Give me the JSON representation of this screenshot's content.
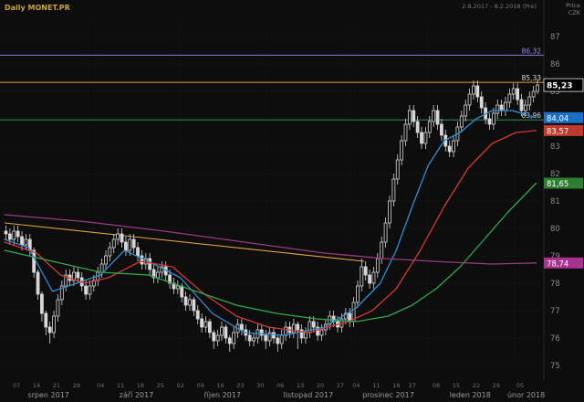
{
  "header": {
    "title": "Daily MONET.PR",
    "range": "2.8.2017 - 8.2.2018 (Pre)",
    "axis_title_line1": "Price",
    "axis_title_line2": "CZK"
  },
  "chart_data": {
    "type": "candlestick",
    "title": "Daily MONET.PR",
    "ylabel": "Price CZK",
    "ylim": [
      74.8,
      87.6
    ],
    "y_ticks": [
      87,
      86,
      85,
      84,
      83,
      82,
      81,
      80,
      79,
      78,
      77,
      76,
      75
    ],
    "grid": true,
    "candles": [
      [
        79.9,
        80.1,
        79.6,
        79.8
      ],
      [
        79.8,
        80.0,
        79.4,
        79.6
      ],
      [
        79.6,
        80.1,
        79.4,
        79.9
      ],
      [
        79.9,
        80.1,
        79.5,
        79.7
      ],
      [
        79.7,
        79.9,
        79.2,
        79.4
      ],
      [
        79.4,
        79.8,
        79.2,
        79.6
      ],
      [
        79.6,
        79.8,
        79.0,
        79.2
      ],
      [
        79.2,
        79.3,
        78.2,
        78.4
      ],
      [
        78.4,
        78.5,
        77.4,
        77.6
      ],
      [
        77.6,
        77.7,
        76.6,
        76.9
      ],
      [
        76.9,
        77.0,
        76.1,
        76.4
      ],
      [
        76.4,
        76.6,
        75.8,
        76.2
      ],
      [
        76.2,
        77.0,
        76.0,
        76.8
      ],
      [
        76.8,
        77.6,
        76.6,
        77.4
      ],
      [
        77.4,
        78.1,
        77.2,
        77.9
      ],
      [
        77.9,
        78.5,
        77.7,
        78.3
      ],
      [
        78.3,
        78.5,
        77.9,
        78.1
      ],
      [
        78.1,
        78.6,
        77.9,
        78.4
      ],
      [
        78.4,
        78.6,
        78.0,
        78.2
      ],
      [
        78.2,
        78.4,
        77.7,
        77.9
      ],
      [
        77.9,
        78.1,
        77.4,
        77.6
      ],
      [
        77.6,
        78.1,
        77.4,
        77.9
      ],
      [
        77.9,
        78.3,
        77.7,
        78.1
      ],
      [
        78.1,
        78.6,
        77.9,
        78.4
      ],
      [
        78.4,
        78.9,
        78.2,
        78.7
      ],
      [
        78.7,
        79.2,
        78.5,
        79.0
      ],
      [
        79.0,
        79.5,
        78.8,
        79.3
      ],
      [
        79.3,
        79.8,
        79.1,
        79.6
      ],
      [
        79.6,
        80.0,
        79.4,
        79.8
      ],
      [
        79.8,
        80.0,
        79.3,
        79.5
      ],
      [
        79.5,
        79.7,
        79.0,
        79.2
      ],
      [
        79.2,
        79.8,
        79.0,
        79.6
      ],
      [
        79.6,
        79.8,
        79.1,
        79.3
      ],
      [
        79.3,
        79.5,
        78.8,
        79.0
      ],
      [
        79.0,
        79.2,
        78.5,
        78.7
      ],
      [
        78.7,
        79.1,
        78.5,
        78.9
      ],
      [
        78.9,
        79.1,
        78.3,
        78.5
      ],
      [
        78.5,
        78.7,
        78.0,
        78.2
      ],
      [
        78.2,
        78.6,
        78.0,
        78.4
      ],
      [
        78.4,
        78.8,
        78.2,
        78.6
      ],
      [
        78.6,
        78.8,
        78.1,
        78.3
      ],
      [
        78.3,
        78.5,
        77.8,
        78.0
      ],
      [
        78.0,
        78.2,
        77.6,
        77.8
      ],
      [
        77.8,
        78.1,
        77.6,
        77.9
      ],
      [
        77.9,
        78.0,
        77.3,
        77.5
      ],
      [
        77.5,
        77.7,
        77.0,
        77.2
      ],
      [
        77.2,
        77.6,
        77.0,
        77.4
      ],
      [
        77.4,
        77.5,
        76.8,
        77.0
      ],
      [
        77.0,
        77.2,
        76.5,
        76.7
      ],
      [
        76.7,
        76.9,
        76.2,
        76.4
      ],
      [
        76.4,
        76.8,
        76.2,
        76.6
      ],
      [
        76.6,
        76.7,
        76.0,
        76.2
      ],
      [
        76.2,
        76.3,
        75.6,
        75.9
      ],
      [
        75.9,
        76.3,
        75.7,
        76.1
      ],
      [
        76.1,
        76.6,
        75.9,
        76.4
      ],
      [
        76.4,
        76.5,
        75.8,
        76.0
      ],
      [
        76.0,
        76.1,
        75.5,
        75.8
      ],
      [
        75.8,
        76.4,
        75.6,
        76.2
      ],
      [
        76.2,
        76.7,
        76.0,
        76.5
      ],
      [
        76.5,
        76.7,
        76.1,
        76.3
      ],
      [
        76.3,
        76.5,
        75.9,
        76.1
      ],
      [
        76.1,
        76.3,
        75.7,
        75.9
      ],
      [
        75.9,
        76.2,
        75.7,
        76.0
      ],
      [
        76.0,
        76.5,
        75.8,
        76.3
      ],
      [
        76.3,
        76.5,
        75.9,
        76.1
      ],
      [
        76.1,
        76.3,
        75.6,
        75.9
      ],
      [
        75.9,
        76.4,
        75.7,
        76.2
      ],
      [
        76.2,
        76.4,
        75.8,
        76.0
      ],
      [
        76.0,
        76.1,
        75.5,
        75.8
      ],
      [
        75.8,
        76.3,
        75.6,
        76.1
      ],
      [
        76.1,
        76.6,
        75.9,
        76.4
      ],
      [
        76.4,
        76.6,
        76.0,
        76.2
      ],
      [
        76.2,
        76.7,
        76.0,
        76.5
      ],
      [
        76.5,
        76.6,
        75.6,
        76.3
      ],
      [
        76.3,
        76.5,
        75.8,
        76.0
      ],
      [
        76.0,
        76.4,
        75.8,
        76.2
      ],
      [
        76.2,
        76.8,
        76.0,
        76.6
      ],
      [
        76.6,
        76.8,
        76.2,
        76.4
      ],
      [
        76.4,
        76.6,
        75.9,
        76.1
      ],
      [
        76.1,
        76.5,
        75.9,
        76.3
      ],
      [
        76.3,
        76.7,
        76.1,
        76.5
      ],
      [
        76.5,
        77.0,
        76.3,
        76.8
      ],
      [
        76.8,
        77.0,
        76.4,
        76.6
      ],
      [
        76.6,
        76.8,
        76.2,
        76.4
      ],
      [
        76.4,
        76.9,
        76.2,
        76.7
      ],
      [
        76.7,
        77.1,
        76.5,
        76.9
      ],
      [
        76.9,
        77.1,
        76.4,
        76.6
      ],
      [
        76.6,
        77.5,
        76.4,
        77.3
      ],
      [
        77.3,
        78.1,
        77.1,
        77.9
      ],
      [
        77.9,
        78.9,
        77.7,
        78.6
      ],
      [
        78.6,
        78.8,
        78.1,
        78.3
      ],
      [
        78.3,
        78.5,
        77.8,
        78.0
      ],
      [
        78.0,
        78.6,
        77.8,
        78.4
      ],
      [
        78.4,
        79.1,
        78.2,
        78.9
      ],
      [
        78.9,
        79.7,
        78.7,
        79.5
      ],
      [
        79.5,
        80.4,
        79.3,
        80.2
      ],
      [
        80.2,
        81.2,
        80.0,
        81.0
      ],
      [
        81.0,
        82.0,
        80.8,
        81.8
      ],
      [
        81.8,
        82.7,
        81.6,
        82.5
      ],
      [
        82.5,
        83.4,
        82.3,
        83.2
      ],
      [
        83.2,
        84.0,
        83.0,
        83.8
      ],
      [
        83.8,
        84.5,
        83.6,
        84.3
      ],
      [
        84.3,
        84.5,
        83.7,
        83.9
      ],
      [
        83.9,
        84.1,
        83.3,
        83.5
      ],
      [
        83.5,
        83.7,
        82.9,
        83.1
      ],
      [
        83.1,
        83.7,
        82.9,
        83.5
      ],
      [
        83.5,
        84.1,
        83.3,
        83.9
      ],
      [
        83.9,
        84.5,
        83.7,
        84.3
      ],
      [
        84.3,
        84.5,
        83.6,
        83.8
      ],
      [
        83.8,
        84.0,
        83.2,
        83.4
      ],
      [
        83.4,
        83.6,
        82.8,
        83.0
      ],
      [
        83.0,
        83.2,
        82.6,
        82.8
      ],
      [
        82.8,
        83.4,
        82.6,
        83.2
      ],
      [
        83.2,
        83.9,
        83.0,
        83.7
      ],
      [
        83.7,
        84.3,
        83.5,
        84.1
      ],
      [
        84.1,
        84.7,
        83.9,
        84.5
      ],
      [
        84.5,
        85.1,
        84.3,
        84.9
      ],
      [
        84.9,
        85.4,
        84.7,
        85.2
      ],
      [
        85.2,
        85.4,
        84.6,
        84.8
      ],
      [
        84.8,
        85.0,
        84.2,
        84.4
      ],
      [
        84.4,
        84.6,
        83.8,
        84.0
      ],
      [
        84.0,
        84.2,
        83.6,
        83.8
      ],
      [
        83.8,
        84.4,
        83.6,
        84.2
      ],
      [
        84.2,
        84.7,
        84.0,
        84.5
      ],
      [
        84.5,
        84.7,
        84.1,
        84.3
      ],
      [
        84.3,
        84.8,
        84.1,
        84.6
      ],
      [
        84.6,
        85.1,
        84.4,
        84.9
      ],
      [
        84.9,
        85.3,
        84.7,
        85.1
      ],
      [
        85.1,
        85.3,
        84.5,
        84.7
      ],
      [
        84.7,
        84.9,
        84.1,
        84.3
      ],
      [
        84.3,
        84.7,
        84.1,
        84.5
      ],
      [
        84.5,
        85.0,
        84.3,
        84.8
      ],
      [
        84.8,
        85.2,
        84.6,
        85.0
      ],
      [
        85.0,
        85.45,
        84.9,
        85.23
      ]
    ],
    "moving_averages": [
      {
        "name": "ma-fast-blue",
        "color": "#2f8fd8",
        "last_label": "84,04",
        "points": [
          [
            0,
            79.6
          ],
          [
            6,
            79.3
          ],
          [
            12,
            77.7
          ],
          [
            18,
            78.0
          ],
          [
            24,
            78.3
          ],
          [
            30,
            79.2
          ],
          [
            36,
            78.8
          ],
          [
            44,
            78.2
          ],
          [
            52,
            76.9
          ],
          [
            60,
            76.2
          ],
          [
            70,
            76.1
          ],
          [
            80,
            76.4
          ],
          [
            88,
            77.1
          ],
          [
            94,
            78.0
          ],
          [
            98,
            79.2
          ],
          [
            102,
            80.8
          ],
          [
            106,
            82.3
          ],
          [
            110,
            83.2
          ],
          [
            114,
            83.5
          ],
          [
            118,
            84.0
          ],
          [
            122,
            84.3
          ],
          [
            127,
            84.3
          ],
          [
            133,
            84.04
          ]
        ]
      },
      {
        "name": "ma-mid-red",
        "color": "#d33a32",
        "last_label": "83,57",
        "points": [
          [
            0,
            79.5
          ],
          [
            8,
            79.1
          ],
          [
            14,
            78.3
          ],
          [
            20,
            78.0
          ],
          [
            26,
            78.2
          ],
          [
            34,
            78.8
          ],
          [
            42,
            78.6
          ],
          [
            50,
            77.6
          ],
          [
            58,
            76.8
          ],
          [
            66,
            76.4
          ],
          [
            76,
            76.2
          ],
          [
            86,
            76.6
          ],
          [
            92,
            77.0
          ],
          [
            98,
            77.8
          ],
          [
            104,
            79.2
          ],
          [
            110,
            80.8
          ],
          [
            116,
            82.2
          ],
          [
            122,
            83.1
          ],
          [
            128,
            83.5
          ],
          [
            133,
            83.57
          ]
        ]
      },
      {
        "name": "ma-slow-green",
        "color": "#2fa84f",
        "last_label": "81,65",
        "points": [
          [
            0,
            79.2
          ],
          [
            12,
            78.8
          ],
          [
            24,
            78.4
          ],
          [
            36,
            78.3
          ],
          [
            48,
            77.7
          ],
          [
            58,
            77.2
          ],
          [
            68,
            76.9
          ],
          [
            78,
            76.7
          ],
          [
            88,
            76.6
          ],
          [
            96,
            76.8
          ],
          [
            102,
            77.2
          ],
          [
            108,
            77.8
          ],
          [
            114,
            78.6
          ],
          [
            120,
            79.6
          ],
          [
            126,
            80.6
          ],
          [
            133,
            81.65
          ]
        ]
      },
      {
        "name": "ma-long-purple",
        "color": "#993a7e",
        "last_label": "78,74",
        "points": [
          [
            0,
            80.5
          ],
          [
            20,
            80.25
          ],
          [
            40,
            79.9
          ],
          [
            60,
            79.5
          ],
          [
            80,
            79.1
          ],
          [
            95,
            78.9
          ],
          [
            110,
            78.78
          ],
          [
            122,
            78.7
          ],
          [
            133,
            78.74
          ]
        ]
      }
    ],
    "h_lines": [
      {
        "price": 86.32,
        "label": "86,32",
        "color": "#8b7bd8",
        "label_color": "#9b8de0"
      },
      {
        "price": 85.33,
        "label": "85,33",
        "color": "#e2a33d",
        "label_color": "#d8d8d8"
      },
      {
        "price": 83.96,
        "label": "83,96",
        "color": "#2e8b57",
        "label_color": "#d8d8d8"
      }
    ],
    "trendline": {
      "from": [
        0,
        80.2
      ],
      "to": [
        90,
        78.8
      ],
      "color": "#e2a33d"
    },
    "last_price": {
      "value": 85.23,
      "label": "85,23",
      "bg": "#000000",
      "border": "#e0e0e0"
    },
    "axis_badges": [
      {
        "label": "84,04",
        "value": 84.04,
        "color": "#1a6fc4"
      },
      {
        "label": "83,57",
        "value": 83.57,
        "color": "#bf3a2e"
      },
      {
        "label": "81,65",
        "value": 81.65,
        "color": "#2e7d32"
      },
      {
        "label": "78,74",
        "value": 78.74,
        "color": "#a8338f"
      }
    ],
    "x_ticks": [
      {
        "i": 3,
        "label": "07"
      },
      {
        "i": 8,
        "label": "14"
      },
      {
        "i": 13,
        "label": "21"
      },
      {
        "i": 18,
        "label": "28"
      },
      {
        "i": 24,
        "label": "04"
      },
      {
        "i": 29,
        "label": "11"
      },
      {
        "i": 34,
        "label": "18"
      },
      {
        "i": 39,
        "label": "25"
      },
      {
        "i": 44,
        "label": "02"
      },
      {
        "i": 49,
        "label": "09"
      },
      {
        "i": 54,
        "label": "16"
      },
      {
        "i": 59,
        "label": "23"
      },
      {
        "i": 64,
        "label": "30"
      },
      {
        "i": 69,
        "label": "06"
      },
      {
        "i": 74,
        "label": "13"
      },
      {
        "i": 79,
        "label": "20"
      },
      {
        "i": 84,
        "label": "27"
      },
      {
        "i": 88,
        "label": "04"
      },
      {
        "i": 93,
        "label": "11"
      },
      {
        "i": 98,
        "label": "18"
      },
      {
        "i": 102,
        "label": "27"
      },
      {
        "i": 108,
        "label": "08"
      },
      {
        "i": 113,
        "label": "15"
      },
      {
        "i": 118,
        "label": "22"
      },
      {
        "i": 123,
        "label": "29"
      },
      {
        "i": 129,
        "label": "05"
      }
    ],
    "months": [
      {
        "start": 0,
        "end": 22,
        "label": "srpen 2017"
      },
      {
        "start": 23,
        "end": 43,
        "label": "září 2017"
      },
      {
        "start": 44,
        "end": 65,
        "label": "říjen 2017"
      },
      {
        "start": 66,
        "end": 86,
        "label": "listopad 2017"
      },
      {
        "start": 87,
        "end": 105,
        "label": "prosinec 2017"
      },
      {
        "start": 106,
        "end": 127,
        "label": "leden 2018"
      },
      {
        "start": 128,
        "end": 133,
        "label": "únor 2018"
      }
    ],
    "style": {
      "background": "#0d0d0d",
      "grid_color": "#262626",
      "candle_color": "#d6d6d6",
      "tick_label_color": "#8a8a8a",
      "day_label_color": "#6f6f6f",
      "month_label_color": "#9a9a9a"
    }
  }
}
